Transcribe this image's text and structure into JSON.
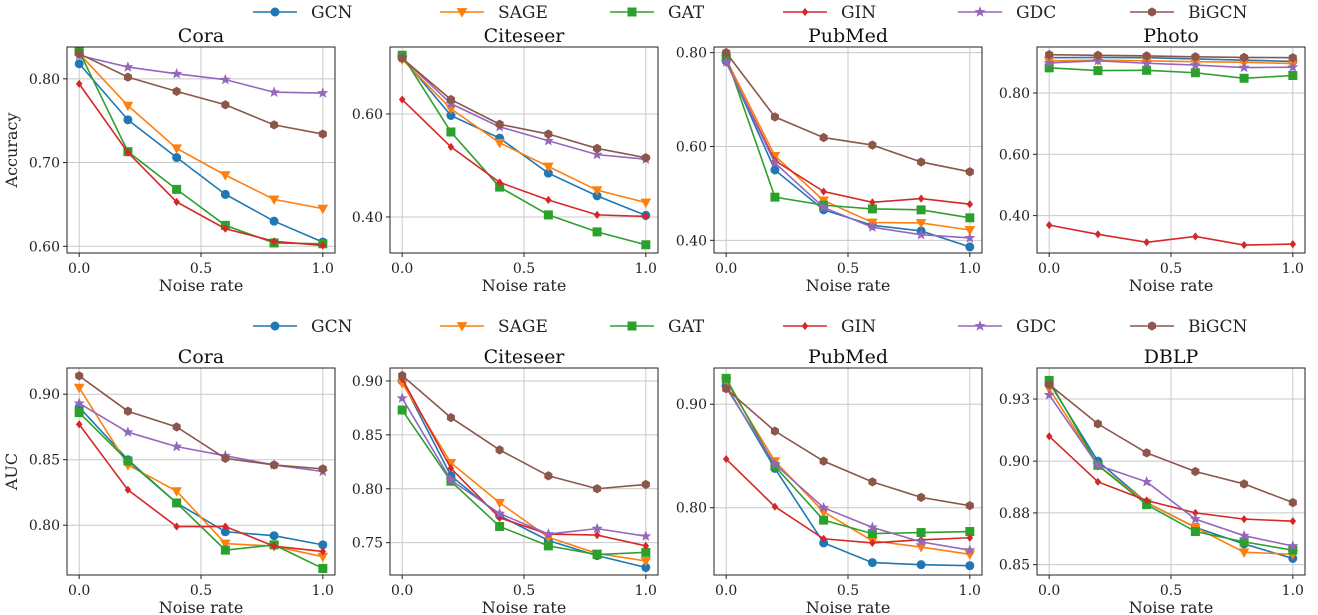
{
  "x_values": [
    0.0,
    0.2,
    0.4,
    0.6,
    0.8,
    1.0
  ],
  "x_ticks": [
    0.0,
    0.5,
    1.0
  ],
  "x_tick_labels": [
    "0.0",
    "0.5",
    "1.0"
  ],
  "xlabel": "Noise rate",
  "methods": [
    {
      "name": "GCN",
      "color": "#1f77b4",
      "marker": "circle"
    },
    {
      "name": "SAGE",
      "color": "#ff7f0e",
      "marker": "triangle-down"
    },
    {
      "name": "GAT",
      "color": "#2ca02c",
      "marker": "square"
    },
    {
      "name": "GIN",
      "color": "#d62728",
      "marker": "diamond"
    },
    {
      "name": "GDC",
      "color": "#9467bd",
      "marker": "star"
    },
    {
      "name": "BiGCN",
      "color": "#8c564b",
      "marker": "hexagon"
    }
  ],
  "rows": [
    {
      "ylabel": "Accuracy"
    },
    {
      "ylabel": "AUC"
    }
  ],
  "chart_data": [
    {
      "type": "line",
      "row": 0,
      "col": 0,
      "title": "Cora",
      "ylabel": "Accuracy",
      "ylim": [
        0.592,
        0.838
      ],
      "yticks": [
        0.6,
        0.7,
        0.8
      ],
      "ytick_labels": [
        "0.60",
        "0.70",
        "0.80"
      ],
      "series": [
        {
          "name": "GCN",
          "values": [
            0.818,
            0.751,
            0.706,
            0.662,
            0.63,
            0.605
          ]
        },
        {
          "name": "SAGE",
          "values": [
            0.83,
            0.768,
            0.717,
            0.685,
            0.656,
            0.645
          ]
        },
        {
          "name": "GAT",
          "values": [
            0.833,
            0.713,
            0.668,
            0.625,
            0.604,
            0.603
          ]
        },
        {
          "name": "GIN",
          "values": [
            0.794,
            0.712,
            0.653,
            0.621,
            0.606,
            0.601
          ]
        },
        {
          "name": "GDC",
          "values": [
            0.828,
            0.814,
            0.806,
            0.799,
            0.784,
            0.783
          ]
        },
        {
          "name": "BiGCN",
          "values": [
            0.83,
            0.802,
            0.785,
            0.769,
            0.745,
            0.734
          ]
        }
      ]
    },
    {
      "type": "line",
      "row": 0,
      "col": 1,
      "title": "Citeseer",
      "ylabel": "",
      "ylim": [
        0.33,
        0.73
      ],
      "yticks": [
        0.4,
        0.6
      ],
      "ytick_labels": [
        "0.40",
        "0.60"
      ],
      "series": [
        {
          "name": "GCN",
          "values": [
            0.71,
            0.597,
            0.553,
            0.485,
            0.441,
            0.403
          ]
        },
        {
          "name": "SAGE",
          "values": [
            0.706,
            0.61,
            0.544,
            0.498,
            0.452,
            0.428
          ]
        },
        {
          "name": "GAT",
          "values": [
            0.714,
            0.565,
            0.458,
            0.404,
            0.371,
            0.346
          ]
        },
        {
          "name": "GIN",
          "values": [
            0.628,
            0.536,
            0.467,
            0.433,
            0.404,
            0.401
          ]
        },
        {
          "name": "GDC",
          "values": [
            0.709,
            0.62,
            0.575,
            0.548,
            0.521,
            0.512
          ]
        },
        {
          "name": "BiGCN",
          "values": [
            0.708,
            0.628,
            0.58,
            0.561,
            0.533,
            0.515
          ]
        }
      ]
    },
    {
      "type": "line",
      "row": 0,
      "col": 2,
      "title": "PubMed",
      "ylabel": "",
      "ylim": [
        0.373,
        0.812
      ],
      "yticks": [
        0.4,
        0.6,
        0.8
      ],
      "ytick_labels": [
        "0.40",
        "0.60",
        "0.80"
      ],
      "series": [
        {
          "name": "GCN",
          "values": [
            0.782,
            0.55,
            0.465,
            0.432,
            0.42,
            0.386
          ]
        },
        {
          "name": "SAGE",
          "values": [
            0.786,
            0.58,
            0.485,
            0.438,
            0.437,
            0.422
          ]
        },
        {
          "name": "GAT",
          "values": [
            0.791,
            0.492,
            0.475,
            0.467,
            0.465,
            0.448
          ]
        },
        {
          "name": "GIN",
          "values": [
            0.779,
            0.57,
            0.504,
            0.481,
            0.489,
            0.477
          ]
        },
        {
          "name": "GDC",
          "values": [
            0.78,
            0.565,
            0.47,
            0.428,
            0.412,
            0.405
          ]
        },
        {
          "name": "BiGCN",
          "values": [
            0.8,
            0.663,
            0.619,
            0.603,
            0.567,
            0.546
          ]
        }
      ]
    },
    {
      "type": "line",
      "row": 0,
      "col": 3,
      "title": "Photo",
      "ylabel": "",
      "ylim": [
        0.278,
        0.95
      ],
      "yticks": [
        0.4,
        0.6,
        0.8
      ],
      "ytick_labels": [
        "0.40",
        "0.60",
        "0.80"
      ],
      "series": [
        {
          "name": "GCN",
          "values": [
            0.915,
            0.916,
            0.915,
            0.911,
            0.907,
            0.903
          ]
        },
        {
          "name": "SAGE",
          "values": [
            0.905,
            0.907,
            0.905,
            0.902,
            0.9,
            0.896
          ]
        },
        {
          "name": "GAT",
          "values": [
            0.882,
            0.873,
            0.874,
            0.866,
            0.848,
            0.857
          ]
        },
        {
          "name": "GIN",
          "values": [
            0.369,
            0.339,
            0.313,
            0.332,
            0.304,
            0.307
          ]
        },
        {
          "name": "GDC",
          "values": [
            0.898,
            0.905,
            0.897,
            0.891,
            0.883,
            0.884
          ]
        },
        {
          "name": "BiGCN",
          "values": [
            0.925,
            0.923,
            0.921,
            0.918,
            0.916,
            0.915
          ]
        }
      ]
    },
    {
      "type": "line",
      "row": 1,
      "col": 0,
      "title": "Cora",
      "ylabel": "AUC",
      "ylim": [
        0.762,
        0.92
      ],
      "yticks": [
        0.8,
        0.85,
        0.9
      ],
      "ytick_labels": [
        "0.80",
        "0.85",
        "0.90"
      ],
      "series": [
        {
          "name": "GCN",
          "values": [
            0.89,
            0.85,
            0.817,
            0.795,
            0.792,
            0.785
          ]
        },
        {
          "name": "SAGE",
          "values": [
            0.905,
            0.846,
            0.826,
            0.786,
            0.784,
            0.776
          ]
        },
        {
          "name": "GAT",
          "values": [
            0.886,
            0.849,
            0.817,
            0.781,
            0.785,
            0.767
          ]
        },
        {
          "name": "GIN",
          "values": [
            0.877,
            0.827,
            0.799,
            0.799,
            0.784,
            0.78
          ]
        },
        {
          "name": "GDC",
          "values": [
            0.893,
            0.871,
            0.86,
            0.853,
            0.846,
            0.841
          ]
        },
        {
          "name": "BiGCN",
          "values": [
            0.914,
            0.887,
            0.875,
            0.851,
            0.846,
            0.843
          ]
        }
      ]
    },
    {
      "type": "line",
      "row": 1,
      "col": 1,
      "title": "Citeseer",
      "ylabel": "",
      "ylim": [
        0.72,
        0.912
      ],
      "yticks": [
        0.75,
        0.8,
        0.85,
        0.9
      ],
      "ytick_labels": [
        "0.75",
        "0.80",
        "0.85",
        "0.90"
      ],
      "series": [
        {
          "name": "GCN",
          "values": [
            0.9,
            0.812,
            0.775,
            0.752,
            0.738,
            0.727
          ]
        },
        {
          "name": "SAGE",
          "values": [
            0.898,
            0.824,
            0.787,
            0.755,
            0.74,
            0.733
          ]
        },
        {
          "name": "GAT",
          "values": [
            0.873,
            0.807,
            0.765,
            0.747,
            0.739,
            0.741
          ]
        },
        {
          "name": "GIN",
          "values": [
            0.902,
            0.819,
            0.773,
            0.758,
            0.757,
            0.747
          ]
        },
        {
          "name": "GDC",
          "values": [
            0.884,
            0.808,
            0.777,
            0.758,
            0.763,
            0.756
          ]
        },
        {
          "name": "BiGCN",
          "values": [
            0.905,
            0.866,
            0.836,
            0.812,
            0.8,
            0.804
          ]
        }
      ]
    },
    {
      "type": "line",
      "row": 1,
      "col": 2,
      "title": "PubMed",
      "ylabel": "",
      "ylim": [
        0.735,
        0.935
      ],
      "yticks": [
        0.8,
        0.9
      ],
      "ytick_labels": [
        "0.80",
        "0.90"
      ],
      "series": [
        {
          "name": "GCN",
          "values": [
            0.918,
            0.838,
            0.766,
            0.747,
            0.745,
            0.744
          ]
        },
        {
          "name": "SAGE",
          "values": [
            0.922,
            0.845,
            0.796,
            0.768,
            0.762,
            0.755
          ]
        },
        {
          "name": "GAT",
          "values": [
            0.925,
            0.84,
            0.788,
            0.775,
            0.776,
            0.777
          ]
        },
        {
          "name": "GIN",
          "values": [
            0.847,
            0.801,
            0.77,
            0.766,
            0.769,
            0.771
          ]
        },
        {
          "name": "GDC",
          "values": [
            0.916,
            0.842,
            0.8,
            0.781,
            0.767,
            0.759
          ]
        },
        {
          "name": "BiGCN",
          "values": [
            0.915,
            0.874,
            0.845,
            0.825,
            0.81,
            0.802
          ]
        }
      ]
    },
    {
      "type": "line",
      "row": 1,
      "col": 3,
      "title": "DBLP",
      "ylabel": "",
      "ylim": [
        0.845,
        0.945
      ],
      "yticks": [
        0.85,
        0.875,
        0.9,
        0.93
      ],
      "ytick_labels": [
        "0.85",
        "0.88",
        "0.90",
        "0.93"
      ],
      "series": [
        {
          "name": "GCN",
          "values": [
            0.938,
            0.9,
            0.88,
            0.868,
            0.86,
            0.853
          ]
        },
        {
          "name": "SAGE",
          "values": [
            0.935,
            0.898,
            0.88,
            0.868,
            0.856,
            0.855
          ]
        },
        {
          "name": "GAT",
          "values": [
            0.939,
            0.898,
            0.879,
            0.866,
            0.861,
            0.857
          ]
        },
        {
          "name": "GIN",
          "values": [
            0.912,
            0.89,
            0.881,
            0.875,
            0.872,
            0.871
          ]
        },
        {
          "name": "GDC",
          "values": [
            0.932,
            0.898,
            0.89,
            0.872,
            0.864,
            0.859
          ]
        },
        {
          "name": "BiGCN",
          "values": [
            0.937,
            0.918,
            0.904,
            0.895,
            0.889,
            0.88
          ]
        }
      ]
    }
  ]
}
